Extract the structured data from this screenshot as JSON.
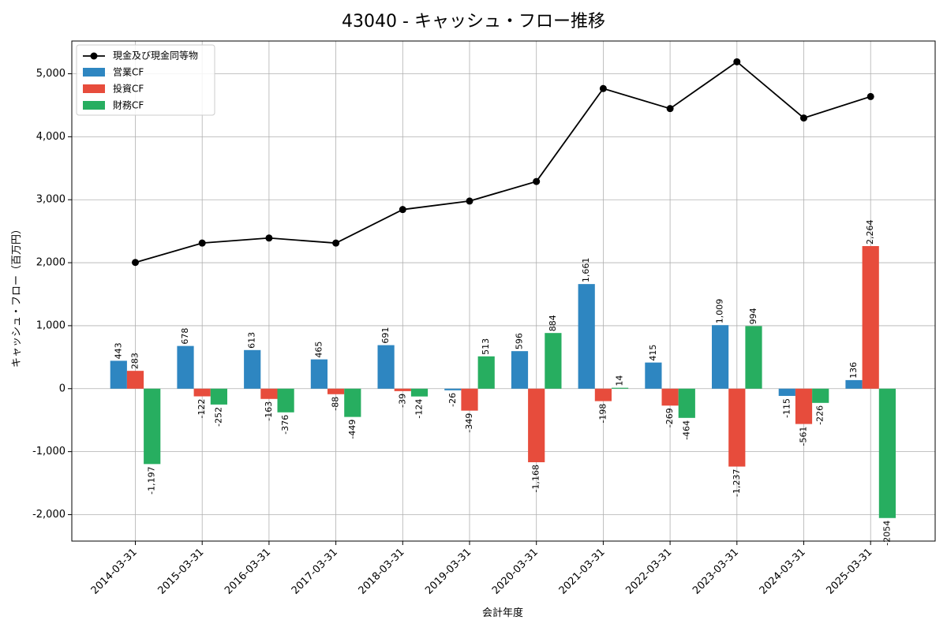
{
  "chart_data": {
    "type": "bar",
    "title": "43040 - キャッシュ・フロー推移",
    "xlabel": "会計年度",
    "ylabel": "キャッシュ・フロー（百万円）",
    "ylim": [
      -2420,
      5520
    ],
    "yticks": [
      -2000,
      -1000,
      0,
      1000,
      2000,
      3000,
      4000,
      5000
    ],
    "ytick_labels": [
      "-2,000",
      "-1,000",
      "0",
      "1,000",
      "2,000",
      "3,000",
      "4,000",
      "5,000"
    ],
    "grid": true,
    "legend_position": "top-left",
    "categories": [
      "2014-03-31",
      "2015-03-31",
      "2016-03-31",
      "2017-03-31",
      "2018-03-31",
      "2019-03-31",
      "2020-03-31",
      "2021-03-31",
      "2022-03-31",
      "2023-03-31",
      "2024-03-31",
      "2025-03-31"
    ],
    "series": [
      {
        "name": "営業CF",
        "color": "#2e86c1",
        "values": [
          443,
          678,
          613,
          465,
          691,
          -26,
          596,
          1661,
          415,
          1009,
          -115,
          136
        ],
        "labels": [
          "443",
          "678",
          "613",
          "465",
          "691",
          "-26",
          "596",
          "1,661",
          "415",
          "1,009",
          "-115",
          "136"
        ]
      },
      {
        "name": "投資CF",
        "color": "#e74c3c",
        "values": [
          283,
          -122,
          -163,
          -88,
          -39,
          -349,
          -1168,
          -198,
          -269,
          -1237,
          -561,
          2264
        ],
        "labels": [
          "283",
          "-122",
          "-163",
          "-88",
          "-39",
          "-349",
          "-1,168",
          "-198",
          "-269",
          "-1,237",
          "-561",
          "2,264"
        ]
      },
      {
        "name": "財務CF",
        "color": "#27ae60",
        "values": [
          -1197,
          -252,
          -376,
          -449,
          -124,
          513,
          884,
          14,
          -464,
          994,
          -226,
          -2054
        ],
        "labels": [
          "-1,197",
          "-252",
          "-376",
          "-449",
          "-124",
          "513",
          "884",
          "14",
          "-464",
          "994",
          "-226",
          "-2054"
        ]
      }
    ],
    "line": {
      "name": "現金及び現金同等物",
      "color": "#000000",
      "values": [
        2004,
        2312,
        2392,
        2312,
        2844,
        2979,
        3290,
        4765,
        4447,
        5190,
        4298,
        4638
      ]
    }
  }
}
